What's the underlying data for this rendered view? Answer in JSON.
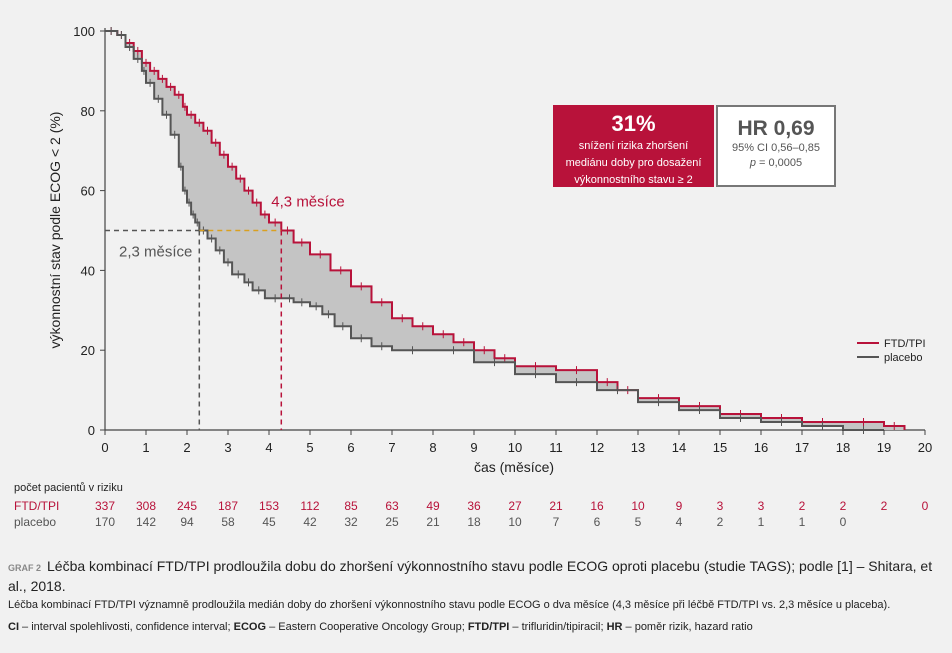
{
  "chart_data": {
    "type": "line",
    "ylabel": "výkonnostní stav podle ECOG < 2 (%)",
    "xlabel": "čas (měsíce)",
    "xlim": [
      0,
      20
    ],
    "ylim": [
      0,
      100
    ],
    "xticks": [
      "0",
      "1",
      "2",
      "3",
      "4",
      "5",
      "6",
      "7",
      "8",
      "9",
      "10",
      "11",
      "12",
      "13",
      "14",
      "15",
      "16",
      "17",
      "18",
      "19",
      "20"
    ],
    "yticks": [
      "0",
      "20",
      "40",
      "60",
      "80",
      "100"
    ],
    "series": [
      {
        "name": "FTD/TPI",
        "color": "#b8123a",
        "points": [
          [
            0,
            100
          ],
          [
            0.3,
            99
          ],
          [
            0.5,
            97
          ],
          [
            0.7,
            95
          ],
          [
            0.9,
            92
          ],
          [
            1.1,
            90
          ],
          [
            1.3,
            88
          ],
          [
            1.5,
            86
          ],
          [
            1.7,
            84
          ],
          [
            1.9,
            81
          ],
          [
            2.0,
            79
          ],
          [
            2.2,
            77
          ],
          [
            2.4,
            75
          ],
          [
            2.6,
            72
          ],
          [
            2.8,
            69
          ],
          [
            3.0,
            66
          ],
          [
            3.2,
            63
          ],
          [
            3.4,
            60
          ],
          [
            3.6,
            57
          ],
          [
            3.8,
            54
          ],
          [
            4.0,
            52
          ],
          [
            4.3,
            50
          ],
          [
            4.6,
            47
          ],
          [
            5.0,
            44
          ],
          [
            5.5,
            40
          ],
          [
            6.0,
            36
          ],
          [
            6.5,
            32
          ],
          [
            7.0,
            28
          ],
          [
            7.5,
            26
          ],
          [
            8.0,
            24
          ],
          [
            8.5,
            22
          ],
          [
            9.0,
            20
          ],
          [
            9.5,
            18
          ],
          [
            10.0,
            16
          ],
          [
            11.0,
            15
          ],
          [
            12.0,
            12
          ],
          [
            12.5,
            10
          ],
          [
            13.0,
            8
          ],
          [
            14.0,
            6
          ],
          [
            15.0,
            4
          ],
          [
            16.0,
            3
          ],
          [
            17.0,
            2
          ],
          [
            18.0,
            2
          ],
          [
            19.0,
            1
          ],
          [
            19.5,
            0
          ]
        ]
      },
      {
        "name": "placebo",
        "color": "#555555",
        "points": [
          [
            0,
            100
          ],
          [
            0.3,
            99
          ],
          [
            0.5,
            96
          ],
          [
            0.7,
            93
          ],
          [
            0.9,
            90
          ],
          [
            1.0,
            87
          ],
          [
            1.2,
            83
          ],
          [
            1.4,
            79
          ],
          [
            1.6,
            74
          ],
          [
            1.8,
            66
          ],
          [
            1.9,
            60
          ],
          [
            2.0,
            57
          ],
          [
            2.1,
            54
          ],
          [
            2.2,
            52
          ],
          [
            2.3,
            50
          ],
          [
            2.5,
            48
          ],
          [
            2.7,
            45
          ],
          [
            2.9,
            42
          ],
          [
            3.1,
            39
          ],
          [
            3.4,
            37
          ],
          [
            3.6,
            35
          ],
          [
            3.9,
            33
          ],
          [
            4.4,
            33
          ],
          [
            4.6,
            32
          ],
          [
            5.0,
            31
          ],
          [
            5.3,
            29
          ],
          [
            5.6,
            26
          ],
          [
            6.0,
            23
          ],
          [
            6.5,
            21
          ],
          [
            7.0,
            20
          ],
          [
            8.0,
            20
          ],
          [
            9.0,
            17
          ],
          [
            10.0,
            14
          ],
          [
            11.0,
            12
          ],
          [
            12.0,
            10
          ],
          [
            13.0,
            7
          ],
          [
            14.0,
            5
          ],
          [
            15.0,
            3
          ],
          [
            16.0,
            2
          ],
          [
            17.0,
            1
          ],
          [
            18.0,
            0
          ],
          [
            19.0,
            0
          ]
        ]
      }
    ],
    "annotations": {
      "ftd_median": "4,3 měsíce",
      "placebo_median": "2,3 měsíce",
      "ftd_median_x": 4.3,
      "placebo_median_x": 2.3,
      "median_y": 50
    },
    "legend": {
      "position": "right",
      "items": [
        "FTD/TPI",
        "placebo"
      ]
    }
  },
  "hr_box": {
    "percent": "31%",
    "percent_text_1": "snížení rizika zhoršení",
    "percent_text_2": "mediánu doby pro dosažení",
    "percent_text_3": "výkonnostního stavu ≥ 2",
    "hr_value": "HR 0,69",
    "ci": "95% CI 0,56–0,85",
    "p_prefix": "p",
    "p_value": " = 0,0005"
  },
  "risk_table": {
    "title": "počet pacientů v riziku",
    "rows": [
      {
        "label": "FTD/TPI",
        "color": "#b8123a",
        "values": [
          "337",
          "308",
          "245",
          "187",
          "153",
          "112",
          "85",
          "63",
          "49",
          "36",
          "27",
          "21",
          "16",
          "10",
          "9",
          "3",
          "3",
          "2",
          "2",
          "2",
          "0"
        ]
      },
      {
        "label": "placebo",
        "color": "#555555",
        "values": [
          "170",
          "142",
          "94",
          "58",
          "45",
          "42",
          "32",
          "25",
          "21",
          "18",
          "10",
          "7",
          "6",
          "5",
          "4",
          "2",
          "1",
          "1",
          "0",
          "",
          ""
        ]
      }
    ]
  },
  "caption": {
    "label": "GRAF 2",
    "title": "Léčba kombinací FTD/TPI prodloužila dobu do zhoršení výkonnostního stavu podle ECOG oproti placebu (studie TAGS); podle [1] – Shitara, et al., 2018.",
    "subtitle": "Léčba kombinací FTD/TPI významně prodloužila medián doby do zhoršení výkonnostního stavu podle ECOG o dva měsíce (4,3 měsíce při léčbě FTD/TPI vs. 2,3 měsíce u placeba).",
    "abbr_1_key": "CI",
    "abbr_1_text": " – interval spolehlivosti, confidence interval; ",
    "abbr_2_key": "ECOG",
    "abbr_2_text": " – Eastern Cooperative Oncology Group; ",
    "abbr_3_key": "FTD/TPI",
    "abbr_3_text": " – trifluridin/tipiracil; ",
    "abbr_4_key": "HR",
    "abbr_4_text": " – poměr rizik, hazard ratio"
  }
}
